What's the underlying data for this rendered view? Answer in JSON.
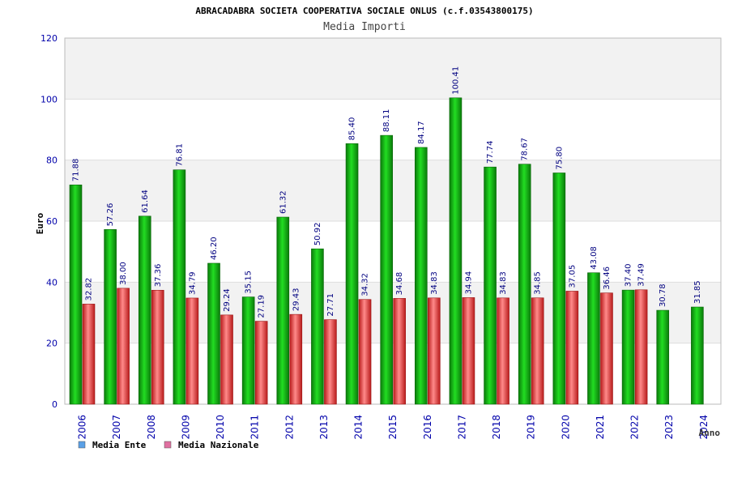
{
  "chart_data": {
    "type": "bar",
    "title": "ABRACADABRA SOCIETA COOPERATIVA SOCIALE ONLUS (c.f.03543800175)",
    "subtitle": "Media Importi",
    "ylabel": "Euro",
    "xlabel": "Anno",
    "ylim": [
      0,
      120
    ],
    "yticks": [
      0,
      20,
      40,
      60,
      80,
      100,
      120
    ],
    "grid": true,
    "legend_position": "bottom-left",
    "categories": [
      "2006",
      "2007",
      "2008",
      "2009",
      "2010",
      "2011",
      "2012",
      "2013",
      "2014",
      "2015",
      "2016",
      "2017",
      "2018",
      "2019",
      "2020",
      "2021",
      "2022",
      "2023",
      "2024"
    ],
    "series": [
      {
        "name": "Media Ente",
        "color": "#0fa30f",
        "legend_color": "#5aa0e6",
        "values": [
          71.88,
          57.26,
          61.64,
          76.81,
          46.2,
          35.15,
          61.32,
          50.92,
          85.4,
          88.11,
          84.17,
          100.41,
          77.74,
          78.67,
          75.8,
          43.08,
          37.4,
          30.78,
          31.85
        ],
        "labels": [
          "71.88",
          "57.26",
          "61.64",
          "76.81",
          "46.20",
          "35.15",
          "61.32",
          "50.92",
          "85.40",
          "88.11",
          "84.17",
          "100.41",
          "77.74",
          "78.67",
          "75.80",
          "43.08",
          "37.40",
          "30.78",
          "31.85"
        ]
      },
      {
        "name": "Media Nazionale",
        "color": "#e23535",
        "legend_color": "#e070a0",
        "values": [
          32.82,
          38.0,
          37.36,
          34.79,
          29.24,
          27.19,
          29.43,
          27.71,
          34.32,
          34.68,
          34.83,
          34.94,
          34.83,
          34.85,
          37.05,
          36.46,
          37.49,
          null,
          null
        ],
        "labels": [
          "32.82",
          "38.00",
          "37.36",
          "34.79",
          "29.24",
          "27.19",
          "29.43",
          "27.71",
          "34.32",
          "34.68",
          "34.83",
          "34.94",
          "34.83",
          "34.85",
          "37.05",
          "36.46",
          "37.49",
          "",
          ""
        ]
      }
    ],
    "colors": {
      "axis_text": "#0000aa",
      "label_text": "#000080",
      "band": "#f2f2f2",
      "axis_line": "#bbbbbb"
    }
  }
}
